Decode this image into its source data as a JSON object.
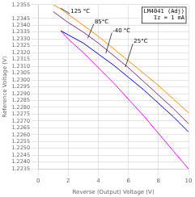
{
  "chart_data": {
    "type": "line",
    "title": "LM4041 (Adj)\nIz = 1 mA",
    "xlabel": "Reverse (Output) Voltage (V)",
    "ylabel": "Reference Voltage (V)",
    "xlim": [
      0,
      10
    ],
    "ylim": [
      1.2235,
      1.2355
    ],
    "xticks": [
      0,
      2,
      4,
      6,
      8,
      10
    ],
    "yticks": [
      1.2235,
      {
        "value": 1.224,
        "label": "1.2240"
      },
      1.2245,
      {
        "value": 1.225,
        "label": "1.2250"
      },
      1.2255,
      {
        "value": 1.226,
        "label": "1.2260"
      },
      1.2265,
      {
        "value": 1.227,
        "label": "1.2270"
      },
      1.2275,
      {
        "value": 1.228,
        "label": "1.2280"
      },
      1.2285,
      {
        "value": 1.229,
        "label": "1.2290"
      },
      1.2295,
      {
        "value": 1.23,
        "label": "1.2300"
      },
      1.2305,
      {
        "value": 1.231,
        "label": "1.2310"
      },
      1.2315,
      {
        "value": 1.232,
        "label": "1.2320"
      },
      1.2325,
      {
        "value": 1.233,
        "label": "1.2330"
      },
      1.2335,
      {
        "value": 1.234,
        "label": "1.2340"
      },
      1.2345,
      1.2355
    ],
    "grid": true,
    "series": [
      {
        "color": "#FF8C00",
        "x": [
          1.0,
          1.5,
          2.0,
          3.0,
          4.0,
          5.0,
          6.0,
          7.0,
          8.0,
          9.0,
          10.0
        ],
        "values": [
          1.2355,
          1.2352,
          1.2348,
          1.234,
          1.2332,
          1.2323,
          1.2314,
          1.2305,
          1.2296,
          1.2286,
          1.2276
        ]
      },
      {
        "color": "#7B2D8B",
        "x": [
          1.0,
          1.5,
          2.0,
          3.0,
          4.0,
          5.0,
          6.0,
          7.0,
          8.0,
          9.0,
          10.0
        ],
        "values": [
          1.235,
          1.2346,
          1.2342,
          1.2335,
          1.2327,
          1.2318,
          1.2309,
          1.2299,
          1.2289,
          1.2279,
          1.2268
        ]
      },
      {
        "color": "#0000EE",
        "x": [
          1.5,
          2.0,
          3.0,
          4.0,
          5.0,
          6.0,
          7.0,
          8.0,
          9.0,
          10.0
        ],
        "values": [
          1.2336,
          1.2333,
          1.2327,
          1.2319,
          1.2311,
          1.2302,
          1.2293,
          1.2283,
          1.2273,
          1.2262
        ]
      },
      {
        "color": "#FF00FF",
        "x": [
          1.5,
          2.0,
          3.0,
          4.0,
          5.0,
          6.0,
          7.0,
          8.0,
          9.0,
          10.0
        ],
        "values": [
          1.2336,
          1.233,
          1.232,
          1.2309,
          1.2298,
          1.2286,
          1.2274,
          1.2261,
          1.2248,
          1.2235
        ]
      }
    ],
    "annotations": [
      {
        "text": "125 °C",
        "xy": [
          1.5,
          1.23525
        ],
        "xytext": [
          2.1,
          1.23485
        ]
      },
      {
        "text": "85°C",
        "xy": [
          3.3,
          1.23305
        ],
        "xytext": [
          3.7,
          1.2341
        ]
      },
      {
        "text": "-40 °C",
        "xy": [
          4.5,
          1.23195
        ],
        "xytext": [
          4.9,
          1.23345
        ]
      },
      {
        "text": "25°C",
        "xy": [
          5.8,
          1.23095
        ],
        "xytext": [
          6.3,
          1.23265
        ]
      }
    ]
  }
}
